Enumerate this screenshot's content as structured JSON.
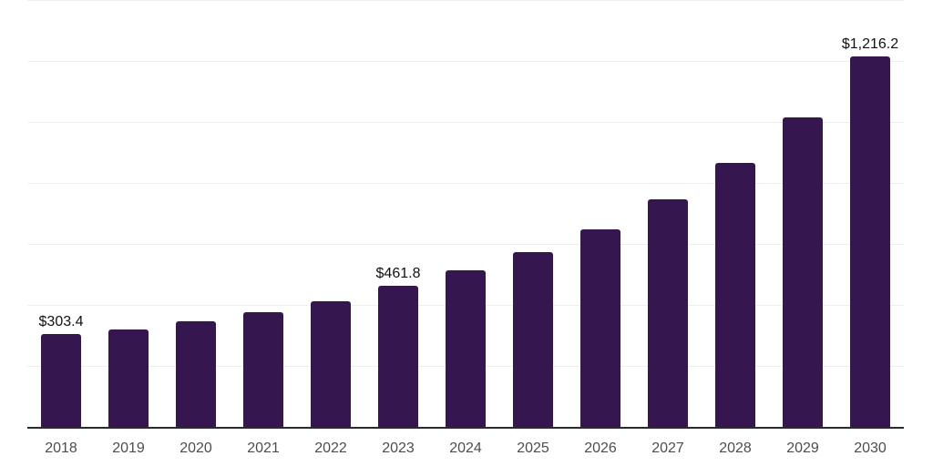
{
  "chart_data": {
    "type": "bar",
    "title": "",
    "xlabel": "",
    "ylabel": "",
    "categories": [
      "2018",
      "2019",
      "2020",
      "2021",
      "2022",
      "2023",
      "2024",
      "2025",
      "2026",
      "2027",
      "2028",
      "2029",
      "2030"
    ],
    "values": [
      303.4,
      319,
      346,
      376,
      412,
      461.8,
      513,
      572,
      648,
      746,
      866,
      1015,
      1216.2
    ],
    "value_labels": {
      "2018": "$303.4",
      "2023": "$461.8",
      "2030": "$1,216.2"
    },
    "ylim": [
      0,
      1400
    ],
    "y_gridline_step": 200,
    "grid": "horizontal-only",
    "y_tick_labels": "none",
    "legend": "none",
    "colors": {
      "bar": "#35164e",
      "gridline": "#efefef",
      "axis_line": "#2a2a2a",
      "tick_label": "#4d4d4d",
      "value_label": "#111111",
      "background": "#ffffff"
    }
  }
}
